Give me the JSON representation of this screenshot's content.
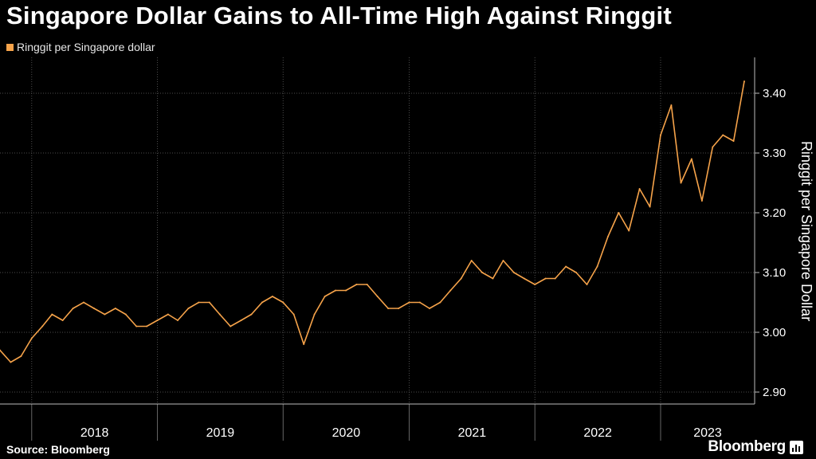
{
  "title": "Singapore Dollar Gains to All-Time High Against Ringgit",
  "source": "Source: Bloomberg",
  "brand": "Bloomberg",
  "colors": {
    "series": "#f6a34a",
    "background": "#000000",
    "grid": "#4d4d4d",
    "text": "#ffffff"
  },
  "chart_data": {
    "type": "line",
    "title": "Singapore Dollar Gains to All-Time High Against Ringgit",
    "legend": "top-left",
    "grid": true,
    "ylabel": "Ringgit per Singapore dollar",
    "y_axis_title": "Ringgit per Singapore Dollar",
    "ylim": [
      2.88,
      3.46
    ],
    "yticks": [
      "3.40",
      "3.30",
      "3.20",
      "3.10",
      "3.00",
      "2.90"
    ],
    "ytick_values": [
      3.4,
      3.3,
      3.2,
      3.1,
      3.0,
      2.9
    ],
    "xlim": [
      "2017-10-01",
      "2023-10-01"
    ],
    "xtick_labels": [
      "2018",
      "2019",
      "2020",
      "2021",
      "2022",
      "2023"
    ],
    "year_starts": [
      "2018-01-01",
      "2019-01-01",
      "2020-01-01",
      "2021-01-01",
      "2022-01-01",
      "2023-01-01"
    ],
    "series": [
      {
        "name": "Ringgit per Singapore dollar",
        "points": [
          [
            "2017-10-01",
            2.97
          ],
          [
            "2017-11-01",
            2.95
          ],
          [
            "2017-12-01",
            2.96
          ],
          [
            "2018-01-01",
            2.99
          ],
          [
            "2018-02-01",
            3.01
          ],
          [
            "2018-03-01",
            3.03
          ],
          [
            "2018-04-01",
            3.02
          ],
          [
            "2018-05-01",
            3.04
          ],
          [
            "2018-06-01",
            3.05
          ],
          [
            "2018-07-01",
            3.04
          ],
          [
            "2018-08-01",
            3.03
          ],
          [
            "2018-09-01",
            3.04
          ],
          [
            "2018-10-01",
            3.03
          ],
          [
            "2018-11-01",
            3.01
          ],
          [
            "2018-12-01",
            3.01
          ],
          [
            "2019-01-01",
            3.02
          ],
          [
            "2019-02-01",
            3.03
          ],
          [
            "2019-03-01",
            3.02
          ],
          [
            "2019-04-01",
            3.04
          ],
          [
            "2019-05-01",
            3.05
          ],
          [
            "2019-06-01",
            3.05
          ],
          [
            "2019-07-01",
            3.03
          ],
          [
            "2019-08-01",
            3.01
          ],
          [
            "2019-09-01",
            3.02
          ],
          [
            "2019-10-01",
            3.03
          ],
          [
            "2019-11-01",
            3.05
          ],
          [
            "2019-12-01",
            3.06
          ],
          [
            "2020-01-01",
            3.05
          ],
          [
            "2020-02-01",
            3.03
          ],
          [
            "2020-03-01",
            2.98
          ],
          [
            "2020-04-01",
            3.03
          ],
          [
            "2020-05-01",
            3.06
          ],
          [
            "2020-06-01",
            3.07
          ],
          [
            "2020-07-01",
            3.07
          ],
          [
            "2020-08-01",
            3.08
          ],
          [
            "2020-09-01",
            3.08
          ],
          [
            "2020-10-01",
            3.06
          ],
          [
            "2020-11-01",
            3.04
          ],
          [
            "2020-12-01",
            3.04
          ],
          [
            "2021-01-01",
            3.05
          ],
          [
            "2021-02-01",
            3.05
          ],
          [
            "2021-03-01",
            3.04
          ],
          [
            "2021-04-01",
            3.05
          ],
          [
            "2021-05-01",
            3.07
          ],
          [
            "2021-06-01",
            3.09
          ],
          [
            "2021-07-01",
            3.12
          ],
          [
            "2021-08-01",
            3.1
          ],
          [
            "2021-09-01",
            3.09
          ],
          [
            "2021-10-01",
            3.12
          ],
          [
            "2021-11-01",
            3.1
          ],
          [
            "2021-12-01",
            3.09
          ],
          [
            "2022-01-01",
            3.08
          ],
          [
            "2022-02-01",
            3.09
          ],
          [
            "2022-03-01",
            3.09
          ],
          [
            "2022-04-01",
            3.11
          ],
          [
            "2022-05-01",
            3.1
          ],
          [
            "2022-06-01",
            3.08
          ],
          [
            "2022-07-01",
            3.11
          ],
          [
            "2022-08-01",
            3.16
          ],
          [
            "2022-09-01",
            3.2
          ],
          [
            "2022-10-01",
            3.17
          ],
          [
            "2022-11-01",
            3.24
          ],
          [
            "2022-12-01",
            3.21
          ],
          [
            "2023-01-01",
            3.33
          ],
          [
            "2023-02-01",
            3.38
          ],
          [
            "2023-03-01",
            3.25
          ],
          [
            "2023-04-01",
            3.29
          ],
          [
            "2023-05-01",
            3.22
          ],
          [
            "2023-06-01",
            3.31
          ],
          [
            "2023-07-01",
            3.33
          ],
          [
            "2023-08-01",
            3.32
          ],
          [
            "2023-09-01",
            3.42
          ]
        ]
      }
    ]
  }
}
